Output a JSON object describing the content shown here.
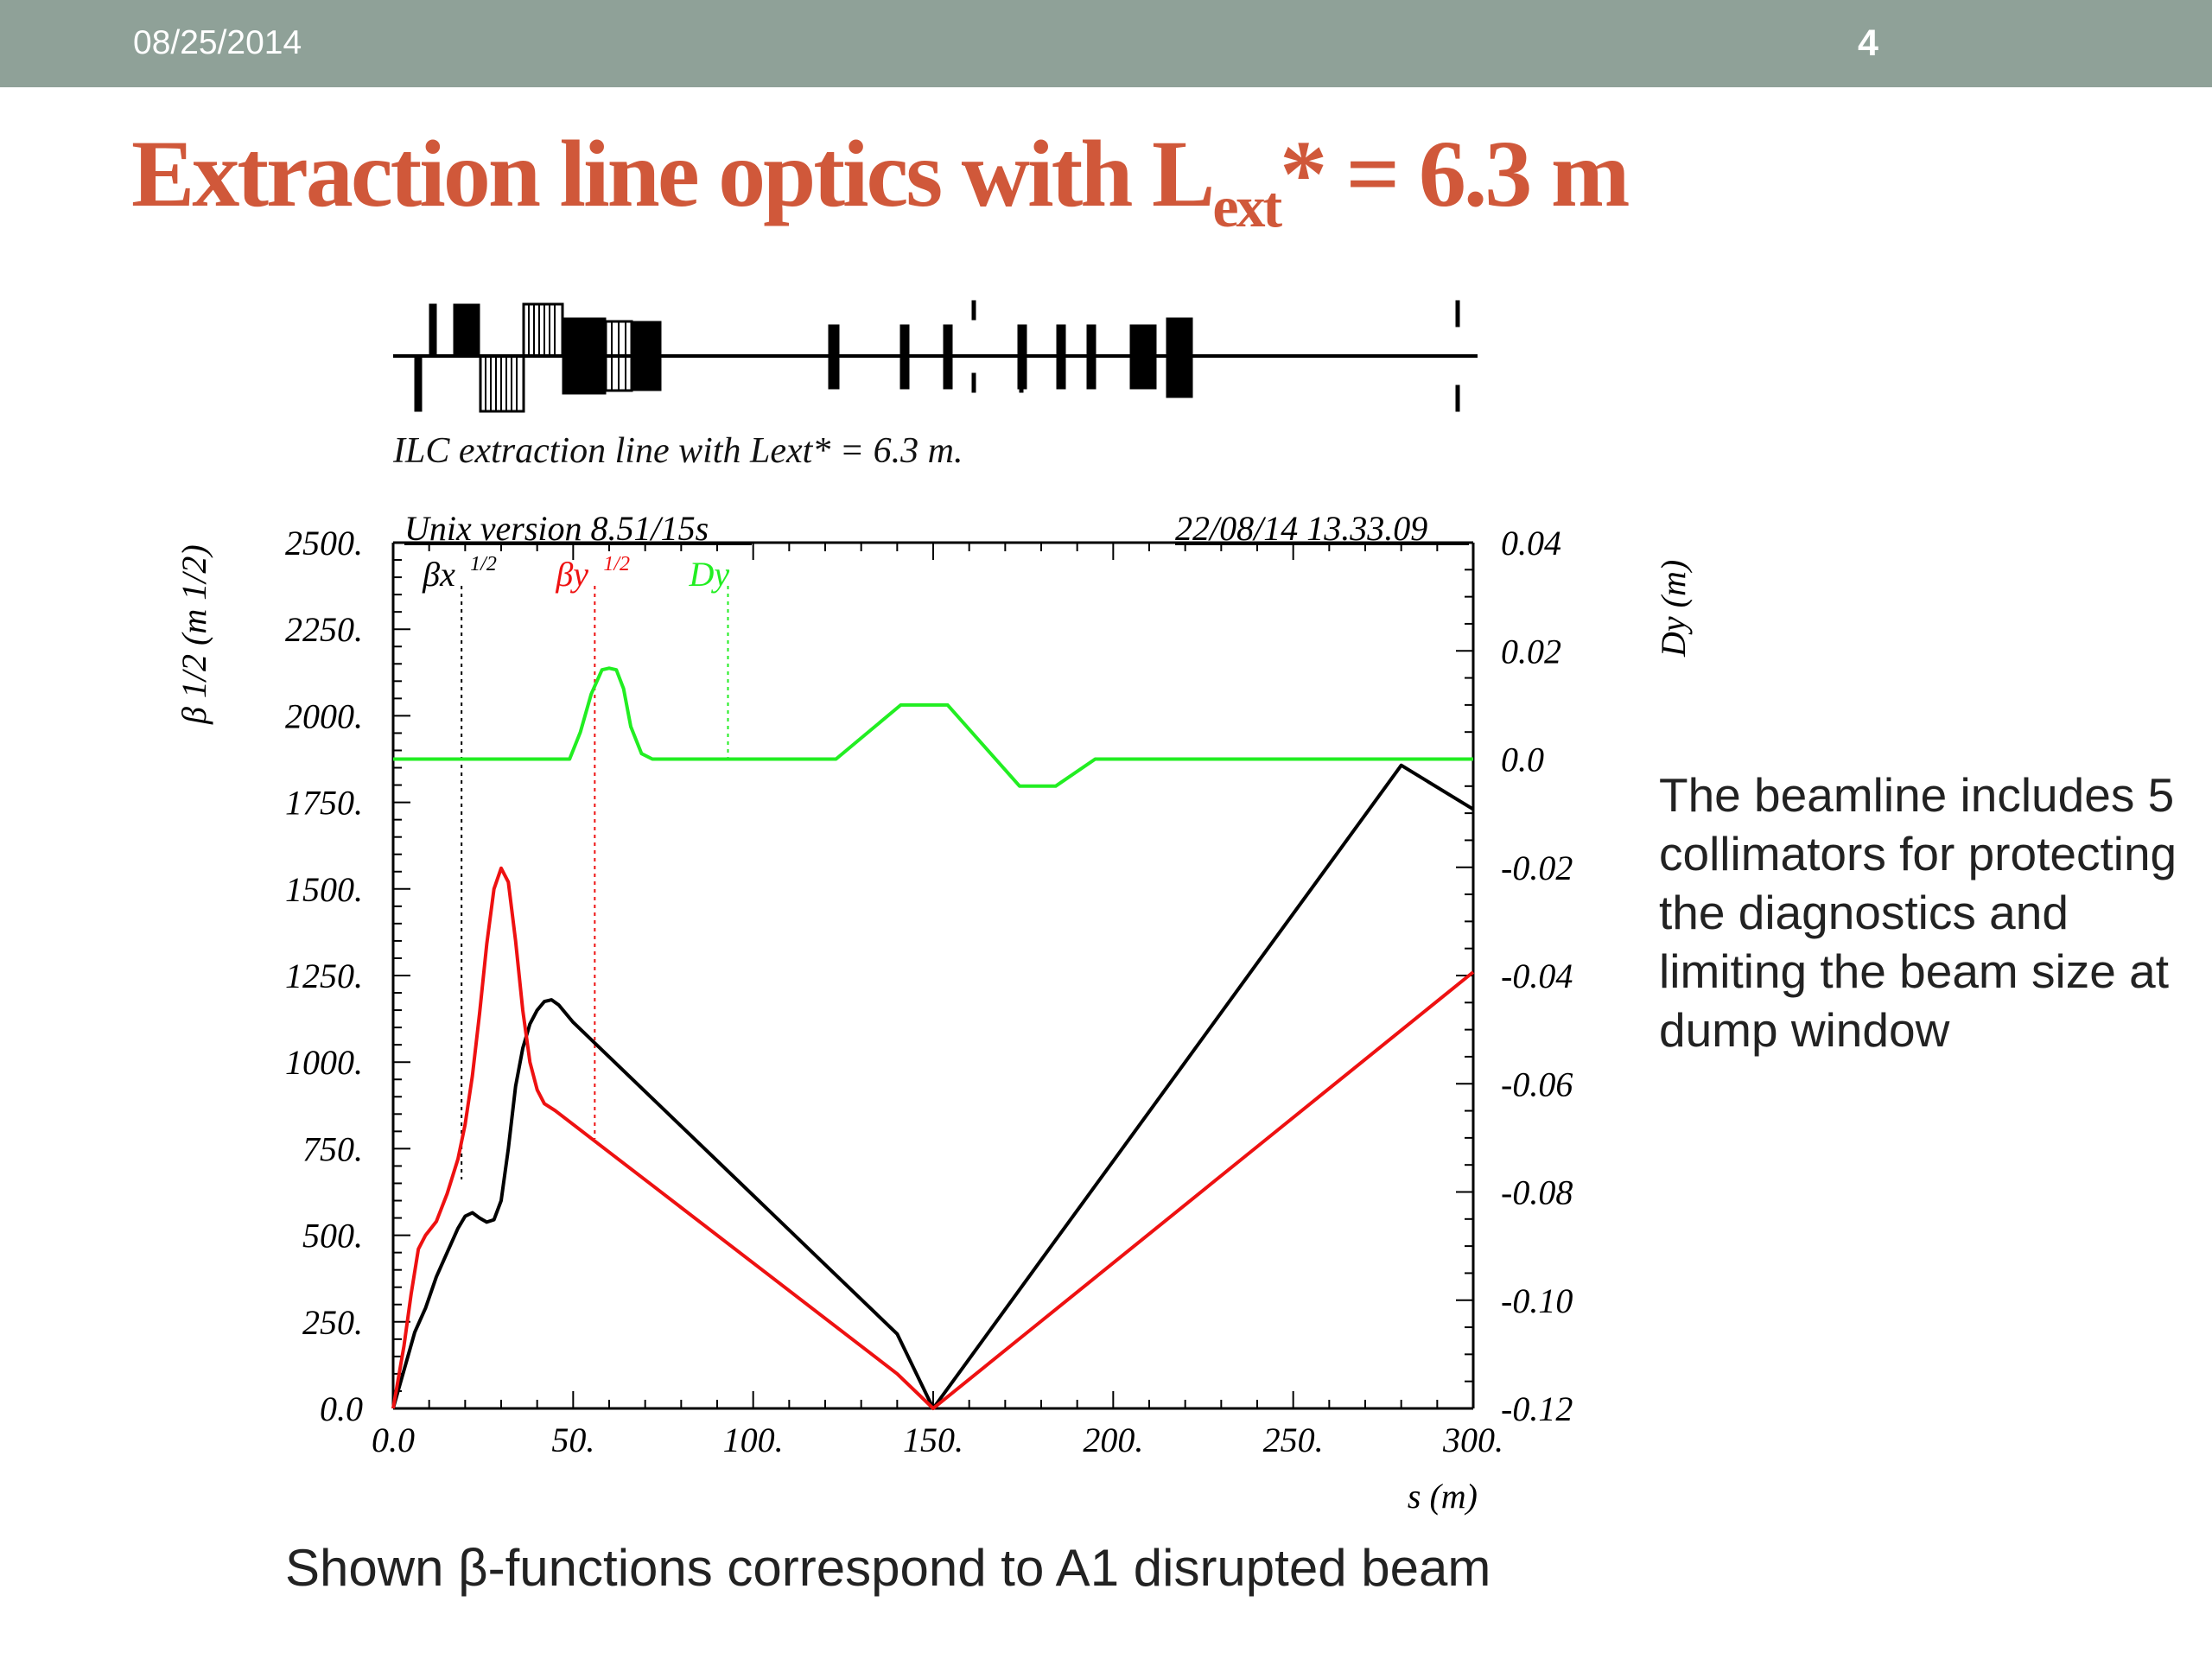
{
  "header": {
    "date": "08/25/2014",
    "page_number": "4"
  },
  "slide_title": {
    "prefix": "Extraction line optics with L",
    "subscript": "ext",
    "suffix": "* = 6.3 m"
  },
  "lattice_caption": "ILC extraction line with Lext* = 6.3 m.",
  "plot_header": {
    "left": "Unix version 8.51/15s",
    "right": "22/08/14  13.33.09"
  },
  "side_note": "The beamline includes 5 collimators for protecting the diagnostics and limiting the beam size at dump window",
  "bottom_caption": "Shown β-functions correspond to A1 disrupted beam",
  "colors": {
    "bx": "#000000",
    "by": "#ee1111",
    "dy": "#22ee22",
    "title": "#d0583a",
    "topbar": "#8fa198"
  },
  "chart_data": {
    "type": "line",
    "xlabel": "s (m)",
    "ylabel": "β 1/2 (m 1/2)",
    "y2label": "Dy (m)",
    "xlim": [
      0,
      300
    ],
    "ylim": [
      0,
      2500
    ],
    "y2lim": [
      -0.12,
      0.04
    ],
    "xticks": [
      "0.0",
      "50.",
      "100.",
      "150.",
      "200.",
      "250.",
      "300."
    ],
    "yticks": [
      "0.0",
      "250.",
      "500.",
      "750.",
      "1000.",
      "1250.",
      "1500.",
      "1750.",
      "2000.",
      "2250.",
      "2500."
    ],
    "y2ticks": [
      "-0.12",
      "-0.10",
      "-0.08",
      "-0.06",
      "-0.04",
      "-0.02",
      "0.0",
      "0.02",
      "0.04"
    ],
    "legend": [
      {
        "label": "βx",
        "sup": "1/2",
        "color": "#000000",
        "marker_x": 19
      },
      {
        "label": "βy",
        "sup": "1/2",
        "color": "#ee1111",
        "marker_x": 56
      },
      {
        "label": "Dy",
        "sup": "",
        "color": "#22ee22",
        "marker_x": 93
      }
    ],
    "series": [
      {
        "name": "βx",
        "axis": "left",
        "x": [
          0,
          3,
          6,
          9,
          12,
          15,
          18,
          20,
          22,
          24,
          26,
          28,
          30,
          32,
          34,
          36,
          38,
          40,
          42,
          44,
          46,
          50,
          60,
          80,
          100,
          120,
          140,
          150,
          160,
          180,
          200,
          220,
          240,
          260,
          280,
          300
        ],
        "y": [
          0,
          110,
          220,
          290,
          380,
          450,
          520,
          555,
          565,
          550,
          538,
          545,
          600,
          750,
          930,
          1040,
          1110,
          1150,
          1175,
          1180,
          1165,
          1115,
          1015,
          815,
          615,
          415,
          215,
          0,
          143,
          429,
          714,
          1000,
          1286,
          1571,
          1857,
          1730
        ]
      },
      {
        "name": "βy",
        "axis": "left",
        "x": [
          0,
          3,
          5,
          7,
          9,
          12,
          15,
          18,
          20,
          22,
          24,
          26,
          28,
          30,
          32,
          34,
          36,
          38,
          40,
          42,
          45,
          50,
          60,
          80,
          100,
          120,
          140,
          150,
          160,
          180,
          200,
          220,
          240,
          260,
          280,
          300
        ],
        "y": [
          0,
          180,
          330,
          460,
          500,
          540,
          620,
          720,
          820,
          960,
          1140,
          1340,
          1500,
          1560,
          1520,
          1350,
          1150,
          1000,
          920,
          880,
          860,
          820,
          740,
          580,
          420,
          260,
          100,
          0,
          84,
          252,
          420,
          588,
          756,
          924,
          1092,
          1260
        ]
      },
      {
        "name": "Dy",
        "axis": "right",
        "x": [
          0,
          49,
          52,
          55,
          58,
          60,
          62,
          64,
          66,
          69,
          72,
          74,
          123,
          141,
          154,
          174,
          184,
          195,
          300
        ],
        "y": [
          0,
          0,
          0.005,
          0.012,
          0.0165,
          0.0168,
          0.0165,
          0.013,
          0.006,
          0.001,
          0,
          0,
          0,
          0.01,
          0.01,
          -0.005,
          -0.005,
          0,
          0
        ]
      }
    ]
  }
}
